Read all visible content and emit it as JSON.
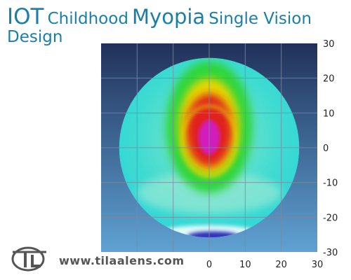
{
  "header": {
    "brand": "IOT",
    "word1": "Childhood",
    "word2": "Myopia",
    "word3": "Single Vision",
    "word4": "Design"
  },
  "footer": {
    "url": "www.tilaalens.com",
    "logo_text": "TL"
  },
  "colors": {
    "title": "#1a7fa8",
    "background_top": "#21315a",
    "background_bottom": "#5fa2d3",
    "grid": "#7a8aa0",
    "center_peak": "#d21fbe",
    "ring_red": "#e0201e",
    "ring_yellow": "#e8d800",
    "ring_green": "#2ed63a",
    "periphery_cyan": "#2fd9d4",
    "bottom_blue": "#2a2fb8"
  },
  "chart_data": {
    "type": "heatmap",
    "title": "",
    "xlabel": "",
    "ylabel": "",
    "xlim": [
      -30,
      30
    ],
    "ylim": [
      -30,
      30
    ],
    "x_ticks": [
      "0",
      "10",
      "20",
      "30"
    ],
    "y_ticks": [
      "30",
      "20",
      "10",
      "0",
      "-10",
      "-20",
      "-30"
    ],
    "grid": true,
    "lens_radius": 25,
    "zones": [
      {
        "name": "central peak",
        "cx": 0,
        "cy": 3,
        "rx": 3,
        "ry": 5,
        "color": "#d21fbe"
      },
      {
        "name": "inner high zone",
        "cx": 0,
        "cy": 5,
        "rx": 6.5,
        "ry": 10.5,
        "color": "#e0201e"
      },
      {
        "name": "transition zone",
        "cx": 0,
        "cy": 6,
        "rx": 8.5,
        "ry": 14,
        "color": "#e8d800"
      },
      {
        "name": "green zone",
        "cx": 0,
        "cy": 6,
        "rx": 12,
        "ry": 19,
        "color": "#2ed63a"
      }
    ],
    "grid_lines": [
      -20,
      -10,
      0,
      10,
      20
    ]
  }
}
